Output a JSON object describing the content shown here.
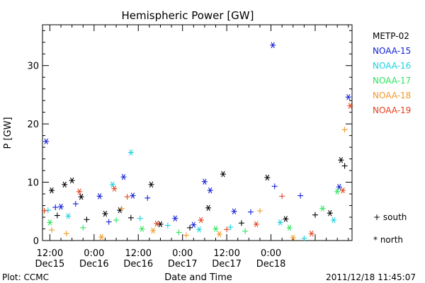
{
  "chart_data": {
    "type": "scatter",
    "title": "Hemispheric Power [GW]",
    "ylabel": "P [GW]",
    "xlabel": "Date and Time",
    "ylim": [
      0,
      37
    ],
    "yticks": [
      0,
      10,
      20,
      30
    ],
    "xlim": [
      "2011-12-15 10:00",
      "2011-12-18 22:00"
    ],
    "xticks": [
      {
        "at": "2011-12-15 12:00",
        "line1": "12:00",
        "line2": "Dec15"
      },
      {
        "at": "2011-12-16 00:00",
        "line1": "0:00",
        "line2": "Dec16"
      },
      {
        "at": "2011-12-16 12:00",
        "line1": "12:00",
        "line2": "Dec16"
      },
      {
        "at": "2011-12-17 00:00",
        "line1": "0:00",
        "line2": "Dec17"
      },
      {
        "at": "2011-12-17 12:00",
        "line1": "12:00",
        "line2": "Dec17"
      },
      {
        "at": "2011-12-18 00:00",
        "line1": "0:00",
        "line2": "Dec18"
      }
    ],
    "grid": false,
    "legend_position": "right",
    "markers": {
      "south_symbol": "+",
      "south_label": "south",
      "north_symbol": "*",
      "north_label": "north"
    },
    "series": [
      {
        "name": "METP-02",
        "color": "#000000",
        "points": [
          {
            "x": "2011-12-15 12:30",
            "y": 8.6,
            "m": "north"
          },
          {
            "x": "2011-12-15 16:00",
            "y": 9.6,
            "m": "north"
          },
          {
            "x": "2011-12-15 18:00",
            "y": 10.3,
            "m": "north"
          },
          {
            "x": "2011-12-15 20:30",
            "y": 7.5,
            "m": "north"
          },
          {
            "x": "2011-12-16 07:00",
            "y": 5.2,
            "m": "north"
          },
          {
            "x": "2011-12-16 15:30",
            "y": 9.6,
            "m": "north"
          },
          {
            "x": "2011-12-17 07:00",
            "y": 5.6,
            "m": "north"
          },
          {
            "x": "2011-12-17 11:00",
            "y": 11.4,
            "m": "north"
          },
          {
            "x": "2011-12-17 23:00",
            "y": 10.8,
            "m": "north"
          },
          {
            "x": "2011-12-18 19:00",
            "y": 13.8,
            "m": "north"
          },
          {
            "x": "2011-12-18 20:00",
            "y": 12.8,
            "m": "south"
          },
          {
            "x": "2011-12-15 14:00",
            "y": 4.3,
            "m": "south"
          },
          {
            "x": "2011-12-15 22:00",
            "y": 3.6,
            "m": "south"
          },
          {
            "x": "2011-12-16 03:00",
            "y": 4.6,
            "m": "north"
          },
          {
            "x": "2011-12-16 10:00",
            "y": 3.9,
            "m": "south"
          },
          {
            "x": "2011-12-16 18:00",
            "y": 2.8,
            "m": "north"
          },
          {
            "x": "2011-12-17 02:00",
            "y": 2.2,
            "m": "south"
          },
          {
            "x": "2011-12-17 16:00",
            "y": 3.0,
            "m": "south"
          },
          {
            "x": "2011-12-18 04:00",
            "y": 3.7,
            "m": "north"
          },
          {
            "x": "2011-12-18 12:00",
            "y": 4.4,
            "m": "south"
          },
          {
            "x": "2011-12-18 16:00",
            "y": 4.7,
            "m": "north"
          }
        ]
      },
      {
        "name": "NOAA-15",
        "color": "#0f1fd6",
        "points": [
          {
            "x": "2011-12-15 11:00",
            "y": 17.0,
            "m": "north"
          },
          {
            "x": "2011-12-15 13:30",
            "y": 5.7,
            "m": "south"
          },
          {
            "x": "2011-12-15 15:00",
            "y": 5.8,
            "m": "north"
          },
          {
            "x": "2011-12-15 19:00",
            "y": 6.3,
            "m": "south"
          },
          {
            "x": "2011-12-16 01:30",
            "y": 7.6,
            "m": "north"
          },
          {
            "x": "2011-12-16 08:00",
            "y": 10.9,
            "m": "north"
          },
          {
            "x": "2011-12-16 10:30",
            "y": 7.7,
            "m": "north"
          },
          {
            "x": "2011-12-16 14:30",
            "y": 7.3,
            "m": "south"
          },
          {
            "x": "2011-12-16 22:00",
            "y": 3.8,
            "m": "north"
          },
          {
            "x": "2011-12-17 06:00",
            "y": 10.1,
            "m": "north"
          },
          {
            "x": "2011-12-17 07:30",
            "y": 8.6,
            "m": "north"
          },
          {
            "x": "2011-12-17 14:00",
            "y": 5.0,
            "m": "north"
          },
          {
            "x": "2011-12-17 18:30",
            "y": 4.9,
            "m": "south"
          },
          {
            "x": "2011-12-18 00:30",
            "y": 33.5,
            "m": "north"
          },
          {
            "x": "2011-12-18 01:00",
            "y": 9.3,
            "m": "south"
          },
          {
            "x": "2011-12-18 08:00",
            "y": 7.7,
            "m": "south"
          },
          {
            "x": "2011-12-18 18:30",
            "y": 9.2,
            "m": "north"
          },
          {
            "x": "2011-12-18 21:00",
            "y": 24.6,
            "m": "north"
          },
          {
            "x": "2011-12-16 04:00",
            "y": 3.2,
            "m": "south"
          },
          {
            "x": "2011-12-17 03:00",
            "y": 2.7,
            "m": "north"
          }
        ]
      },
      {
        "name": "NOAA-16",
        "color": "#19d2df",
        "points": [
          {
            "x": "2011-12-15 11:30",
            "y": 5.2,
            "m": "south"
          },
          {
            "x": "2011-12-15 17:00",
            "y": 4.2,
            "m": "north"
          },
          {
            "x": "2011-12-16 05:00",
            "y": 9.6,
            "m": "north"
          },
          {
            "x": "2011-12-16 10:00",
            "y": 15.1,
            "m": "north"
          },
          {
            "x": "2011-12-16 12:30",
            "y": 3.8,
            "m": "south"
          },
          {
            "x": "2011-12-16 20:00",
            "y": 2.6,
            "m": "south"
          },
          {
            "x": "2011-12-17 04:30",
            "y": 1.9,
            "m": "north"
          },
          {
            "x": "2011-12-17 13:00",
            "y": 2.3,
            "m": "south"
          },
          {
            "x": "2011-12-18 02:30",
            "y": 3.1,
            "m": "north"
          },
          {
            "x": "2011-12-18 09:00",
            "y": 0.4,
            "m": "south"
          },
          {
            "x": "2011-12-18 17:00",
            "y": 3.5,
            "m": "north"
          }
        ]
      },
      {
        "name": "NOAA-17",
        "color": "#2ee55c",
        "points": [
          {
            "x": "2011-12-15 12:00",
            "y": 3.1,
            "m": "north"
          },
          {
            "x": "2011-12-15 21:00",
            "y": 2.2,
            "m": "south"
          },
          {
            "x": "2011-12-16 06:00",
            "y": 3.5,
            "m": "south"
          },
          {
            "x": "2011-12-16 13:00",
            "y": 2.0,
            "m": "north"
          },
          {
            "x": "2011-12-16 23:00",
            "y": 1.4,
            "m": "south"
          },
          {
            "x": "2011-12-17 09:00",
            "y": 2.0,
            "m": "north"
          },
          {
            "x": "2011-12-17 17:00",
            "y": 1.6,
            "m": "south"
          },
          {
            "x": "2011-12-18 05:00",
            "y": 2.2,
            "m": "north"
          },
          {
            "x": "2011-12-18 14:00",
            "y": 5.5,
            "m": "north"
          },
          {
            "x": "2011-12-18 18:00",
            "y": 8.4,
            "m": "north"
          }
        ]
      },
      {
        "name": "NOAA-18",
        "color": "#f2982a",
        "points": [
          {
            "x": "2011-12-15 12:30",
            "y": 1.8,
            "m": "south"
          },
          {
            "x": "2011-12-15 16:30",
            "y": 1.2,
            "m": "south"
          },
          {
            "x": "2011-12-16 02:00",
            "y": 0.6,
            "m": "north"
          },
          {
            "x": "2011-12-16 07:30",
            "y": 5.5,
            "m": "south"
          },
          {
            "x": "2011-12-16 16:00",
            "y": 1.7,
            "m": "north"
          },
          {
            "x": "2011-12-17 01:00",
            "y": 0.9,
            "m": "south"
          },
          {
            "x": "2011-12-17 10:00",
            "y": 1.1,
            "m": "north"
          },
          {
            "x": "2011-12-17 21:00",
            "y": 5.1,
            "m": "south"
          },
          {
            "x": "2011-12-18 06:00",
            "y": 0.5,
            "m": "north"
          },
          {
            "x": "2011-12-18 20:00",
            "y": 19.0,
            "m": "south"
          }
        ]
      },
      {
        "name": "NOAA-19",
        "color": "#e5421d",
        "points": [
          {
            "x": "2011-12-15 10:30",
            "y": 5.1,
            "m": "south"
          },
          {
            "x": "2011-12-15 20:00",
            "y": 8.4,
            "m": "north"
          },
          {
            "x": "2011-12-16 05:30",
            "y": 8.9,
            "m": "north"
          },
          {
            "x": "2011-12-16 09:00",
            "y": 7.5,
            "m": "south"
          },
          {
            "x": "2011-12-16 17:00",
            "y": 2.9,
            "m": "north"
          },
          {
            "x": "2011-12-17 05:00",
            "y": 3.5,
            "m": "north"
          },
          {
            "x": "2011-12-17 12:00",
            "y": 1.9,
            "m": "south"
          },
          {
            "x": "2011-12-17 20:00",
            "y": 2.8,
            "m": "north"
          },
          {
            "x": "2011-12-18 03:00",
            "y": 7.6,
            "m": "south"
          },
          {
            "x": "2011-12-18 11:00",
            "y": 1.2,
            "m": "north"
          },
          {
            "x": "2011-12-18 19:30",
            "y": 8.6,
            "m": "north"
          },
          {
            "x": "2011-12-18 21:30",
            "y": 23.1,
            "m": "north"
          }
        ]
      }
    ]
  },
  "footer": {
    "left": "Plot: CCMC",
    "center": "Date and Time",
    "right": "2011/12/18 11:45:07"
  }
}
